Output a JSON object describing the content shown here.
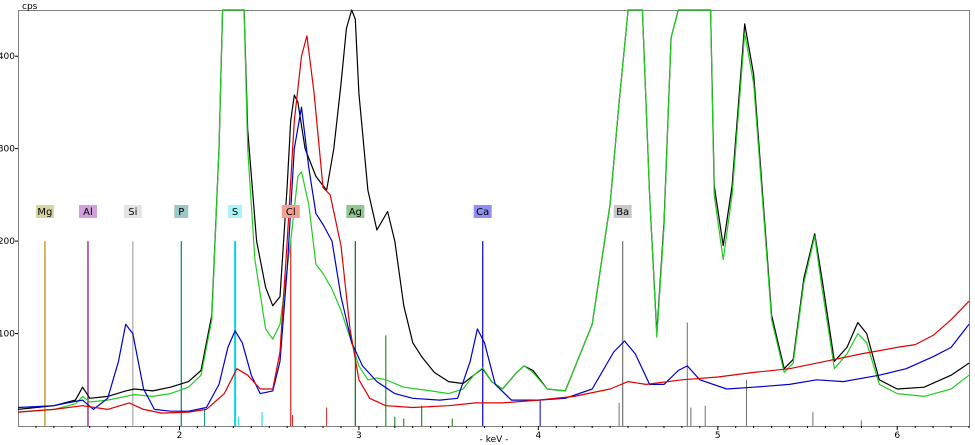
{
  "chart_data": {
    "type": "line",
    "ylabel": "cps",
    "xlabel": "- keV -",
    "xlim": [
      1.1,
      6.4
    ],
    "ylim": [
      0,
      450
    ],
    "x_ticks": [
      2,
      3,
      4,
      5,
      6
    ],
    "y_ticks": [
      100,
      200,
      300,
      400
    ],
    "grid": false,
    "series": [
      {
        "color": "#000000",
        "points": [
          [
            1.1,
            18
          ],
          [
            1.3,
            22
          ],
          [
            1.42,
            28
          ],
          [
            1.46,
            42
          ],
          [
            1.5,
            30
          ],
          [
            1.6,
            32
          ],
          [
            1.7,
            38
          ],
          [
            1.75,
            40
          ],
          [
            1.85,
            38
          ],
          [
            1.95,
            42
          ],
          [
            2.05,
            48
          ],
          [
            2.12,
            60
          ],
          [
            2.18,
            120
          ],
          [
            2.22,
            300
          ],
          [
            2.24,
            450
          ],
          [
            2.36,
            450
          ],
          [
            2.38,
            320
          ],
          [
            2.43,
            200
          ],
          [
            2.48,
            150
          ],
          [
            2.52,
            130
          ],
          [
            2.56,
            140
          ],
          [
            2.6,
            260
          ],
          [
            2.62,
            330
          ],
          [
            2.64,
            358
          ],
          [
            2.66,
            350
          ],
          [
            2.7,
            300
          ],
          [
            2.76,
            270
          ],
          [
            2.82,
            255
          ],
          [
            2.86,
            300
          ],
          [
            2.9,
            370
          ],
          [
            2.93,
            430
          ],
          [
            2.96,
            450
          ],
          [
            2.98,
            440
          ],
          [
            3.0,
            360
          ],
          [
            3.05,
            255
          ],
          [
            3.1,
            212
          ],
          [
            3.16,
            232
          ],
          [
            3.2,
            200
          ],
          [
            3.25,
            130
          ],
          [
            3.3,
            90
          ],
          [
            3.35,
            75
          ],
          [
            3.42,
            58
          ],
          [
            3.5,
            48
          ],
          [
            3.58,
            46
          ],
          [
            3.64,
            55
          ],
          [
            3.69,
            62
          ],
          [
            3.74,
            48
          ],
          [
            3.8,
            40
          ],
          [
            3.88,
            58
          ],
          [
            3.92,
            65
          ],
          [
            3.97,
            60
          ],
          [
            4.05,
            40
          ],
          [
            4.15,
            38
          ],
          [
            4.3,
            110
          ],
          [
            4.4,
            240
          ],
          [
            4.45,
            350
          ],
          [
            4.5,
            450
          ],
          [
            4.58,
            450
          ],
          [
            4.62,
            250
          ],
          [
            4.66,
            100
          ],
          [
            4.7,
            220
          ],
          [
            4.74,
            420
          ],
          [
            4.78,
            450
          ],
          [
            4.96,
            450
          ],
          [
            4.98,
            260
          ],
          [
            5.03,
            195
          ],
          [
            5.08,
            260
          ],
          [
            5.15,
            435
          ],
          [
            5.2,
            380
          ],
          [
            5.3,
            120
          ],
          [
            5.37,
            62
          ],
          [
            5.42,
            72
          ],
          [
            5.48,
            160
          ],
          [
            5.54,
            208
          ],
          [
            5.58,
            160
          ],
          [
            5.65,
            70
          ],
          [
            5.72,
            85
          ],
          [
            5.78,
            112
          ],
          [
            5.83,
            100
          ],
          [
            5.9,
            50
          ],
          [
            6.0,
            40
          ],
          [
            6.15,
            42
          ],
          [
            6.3,
            55
          ],
          [
            6.4,
            68
          ]
        ]
      },
      {
        "color": "#22cc22",
        "points": [
          [
            1.1,
            15
          ],
          [
            1.3,
            18
          ],
          [
            1.42,
            24
          ],
          [
            1.46,
            32
          ],
          [
            1.5,
            26
          ],
          [
            1.6,
            28
          ],
          [
            1.7,
            32
          ],
          [
            1.75,
            34
          ],
          [
            1.85,
            32
          ],
          [
            1.95,
            35
          ],
          [
            2.05,
            42
          ],
          [
            2.12,
            55
          ],
          [
            2.18,
            115
          ],
          [
            2.22,
            300
          ],
          [
            2.24,
            450
          ],
          [
            2.36,
            450
          ],
          [
            2.38,
            300
          ],
          [
            2.42,
            180
          ],
          [
            2.48,
            105
          ],
          [
            2.52,
            94
          ],
          [
            2.56,
            110
          ],
          [
            2.62,
            200
          ],
          [
            2.66,
            270
          ],
          [
            2.68,
            275
          ],
          [
            2.72,
            240
          ],
          [
            2.76,
            175
          ],
          [
            2.8,
            165
          ],
          [
            2.85,
            148
          ],
          [
            2.9,
            125
          ],
          [
            2.96,
            90
          ],
          [
            3.0,
            65
          ],
          [
            3.05,
            50
          ],
          [
            3.1,
            52
          ],
          [
            3.15,
            50
          ],
          [
            3.25,
            42
          ],
          [
            3.4,
            38
          ],
          [
            3.5,
            35
          ],
          [
            3.58,
            40
          ],
          [
            3.64,
            55
          ],
          [
            3.69,
            63
          ],
          [
            3.74,
            48
          ],
          [
            3.8,
            40
          ],
          [
            3.88,
            58
          ],
          [
            3.92,
            65
          ],
          [
            3.97,
            58
          ],
          [
            4.05,
            40
          ],
          [
            4.15,
            38
          ],
          [
            4.3,
            110
          ],
          [
            4.4,
            240
          ],
          [
            4.45,
            350
          ],
          [
            4.5,
            450
          ],
          [
            4.58,
            450
          ],
          [
            4.62,
            250
          ],
          [
            4.66,
            96
          ],
          [
            4.7,
            215
          ],
          [
            4.74,
            420
          ],
          [
            4.78,
            450
          ],
          [
            4.96,
            450
          ],
          [
            4.98,
            250
          ],
          [
            5.03,
            180
          ],
          [
            5.08,
            250
          ],
          [
            5.15,
            425
          ],
          [
            5.2,
            370
          ],
          [
            5.3,
            115
          ],
          [
            5.37,
            58
          ],
          [
            5.42,
            68
          ],
          [
            5.48,
            155
          ],
          [
            5.54,
            205
          ],
          [
            5.58,
            150
          ],
          [
            5.65,
            62
          ],
          [
            5.72,
            78
          ],
          [
            5.78,
            100
          ],
          [
            5.83,
            90
          ],
          [
            5.9,
            45
          ],
          [
            6.0,
            35
          ],
          [
            6.15,
            32
          ],
          [
            6.3,
            40
          ],
          [
            6.4,
            55
          ]
        ]
      },
      {
        "color": "#0000cc",
        "points": [
          [
            1.1,
            20
          ],
          [
            1.3,
            22
          ],
          [
            1.4,
            26
          ],
          [
            1.46,
            28
          ],
          [
            1.52,
            18
          ],
          [
            1.6,
            30
          ],
          [
            1.66,
            70
          ],
          [
            1.7,
            110
          ],
          [
            1.74,
            100
          ],
          [
            1.8,
            40
          ],
          [
            1.86,
            18
          ],
          [
            1.95,
            16
          ],
          [
            2.05,
            16
          ],
          [
            2.15,
            20
          ],
          [
            2.22,
            45
          ],
          [
            2.27,
            85
          ],
          [
            2.31,
            103
          ],
          [
            2.35,
            90
          ],
          [
            2.4,
            55
          ],
          [
            2.45,
            35
          ],
          [
            2.52,
            38
          ],
          [
            2.56,
            70
          ],
          [
            2.6,
            170
          ],
          [
            2.64,
            300
          ],
          [
            2.68,
            345
          ],
          [
            2.72,
            280
          ],
          [
            2.76,
            230
          ],
          [
            2.8,
            218
          ],
          [
            2.85,
            200
          ],
          [
            2.9,
            140
          ],
          [
            2.96,
            90
          ],
          [
            3.02,
            65
          ],
          [
            3.1,
            48
          ],
          [
            3.2,
            35
          ],
          [
            3.3,
            30
          ],
          [
            3.45,
            28
          ],
          [
            3.55,
            30
          ],
          [
            3.62,
            70
          ],
          [
            3.66,
            105
          ],
          [
            3.7,
            90
          ],
          [
            3.76,
            45
          ],
          [
            3.85,
            28
          ],
          [
            4.0,
            28
          ],
          [
            4.15,
            30
          ],
          [
            4.3,
            40
          ],
          [
            4.42,
            80
          ],
          [
            4.48,
            92
          ],
          [
            4.54,
            78
          ],
          [
            4.62,
            45
          ],
          [
            4.7,
            45
          ],
          [
            4.78,
            60
          ],
          [
            4.83,
            65
          ],
          [
            4.9,
            50
          ],
          [
            5.05,
            40
          ],
          [
            5.2,
            42
          ],
          [
            5.4,
            45
          ],
          [
            5.55,
            50
          ],
          [
            5.7,
            48
          ],
          [
            5.9,
            55
          ],
          [
            6.05,
            62
          ],
          [
            6.2,
            75
          ],
          [
            6.3,
            85
          ],
          [
            6.4,
            110
          ]
        ]
      },
      {
        "color": "#dd0000",
        "points": [
          [
            1.1,
            15
          ],
          [
            1.3,
            18
          ],
          [
            1.46,
            22
          ],
          [
            1.6,
            18
          ],
          [
            1.72,
            25
          ],
          [
            1.8,
            18
          ],
          [
            1.9,
            14
          ],
          [
            2.05,
            15
          ],
          [
            2.15,
            18
          ],
          [
            2.25,
            35
          ],
          [
            2.32,
            62
          ],
          [
            2.38,
            55
          ],
          [
            2.45,
            40
          ],
          [
            2.52,
            40
          ],
          [
            2.56,
            80
          ],
          [
            2.6,
            200
          ],
          [
            2.64,
            330
          ],
          [
            2.68,
            400
          ],
          [
            2.71,
            422
          ],
          [
            2.75,
            360
          ],
          [
            2.8,
            258
          ],
          [
            2.84,
            250
          ],
          [
            2.9,
            195
          ],
          [
            2.95,
            105
          ],
          [
            3.0,
            50
          ],
          [
            3.06,
            30
          ],
          [
            3.15,
            22
          ],
          [
            3.3,
            20
          ],
          [
            3.5,
            22
          ],
          [
            3.65,
            25
          ],
          [
            3.8,
            25
          ],
          [
            4.0,
            28
          ],
          [
            4.2,
            32
          ],
          [
            4.4,
            40
          ],
          [
            4.5,
            48
          ],
          [
            4.6,
            45
          ],
          [
            4.8,
            50
          ],
          [
            5.0,
            53
          ],
          [
            5.2,
            58
          ],
          [
            5.4,
            62
          ],
          [
            5.6,
            70
          ],
          [
            5.8,
            78
          ],
          [
            6.0,
            85
          ],
          [
            6.1,
            88
          ],
          [
            6.2,
            98
          ],
          [
            6.3,
            115
          ],
          [
            6.4,
            135
          ]
        ]
      }
    ],
    "element_markers": [
      {
        "label": "Mg",
        "energy": 1.25,
        "color": "#b8860b",
        "box": "#d8d5a0",
        "height": 200
      },
      {
        "label": "Al",
        "energy": 1.49,
        "color": "#8b008b",
        "box": "#d2a0dc",
        "height": 200
      },
      {
        "label": "Si",
        "energy": 1.74,
        "color": "#a8a8a8",
        "box": "#e4e4e4",
        "height": 200
      },
      {
        "label": "P",
        "energy": 2.01,
        "color": "#008080",
        "box": "#9dc7c7",
        "height": 200
      },
      {
        "label": "S",
        "energy": 2.31,
        "color": "#00d8e8",
        "box": "#a8f4f8",
        "height": 200
      },
      {
        "label": "Cl",
        "energy": 2.62,
        "color": "#dd2222",
        "box": "#f0a090",
        "height": 200
      },
      {
        "label": "Ag",
        "energy": 2.98,
        "color": "#007700",
        "box": "#90c890",
        "height": 200
      },
      {
        "label": "Ca",
        "energy": 3.69,
        "color": "#0000cc",
        "box": "#9090f0",
        "height": 200
      },
      {
        "label": "Ba",
        "energy": 4.47,
        "color": "#707070",
        "box": "#c8c8c8",
        "height": 200
      }
    ],
    "minor_lines": [
      {
        "energy": 2.14,
        "height": 18,
        "color": "#008080"
      },
      {
        "energy": 2.33,
        "height": 10,
        "color": "#00d8e8"
      },
      {
        "energy": 2.46,
        "height": 15,
        "color": "#00d8e8"
      },
      {
        "energy": 2.82,
        "height": 20,
        "color": "#dd2222"
      },
      {
        "energy": 2.63,
        "height": 12,
        "color": "#dd2222"
      },
      {
        "energy": 3.15,
        "height": 98,
        "color": "#007700"
      },
      {
        "energy": 3.2,
        "height": 10,
        "color": "#007700"
      },
      {
        "energy": 3.25,
        "height": 8,
        "color": "#007700"
      },
      {
        "energy": 3.35,
        "height": 22,
        "color": "#007700"
      },
      {
        "energy": 3.52,
        "height": 8,
        "color": "#007700"
      },
      {
        "energy": 4.01,
        "height": 28,
        "color": "#0000cc"
      },
      {
        "energy": 4.45,
        "height": 25,
        "color": "#707070"
      },
      {
        "energy": 4.83,
        "height": 112,
        "color": "#707070"
      },
      {
        "energy": 4.85,
        "height": 20,
        "color": "#707070"
      },
      {
        "energy": 4.93,
        "height": 22,
        "color": "#707070"
      },
      {
        "energy": 5.16,
        "height": 50,
        "color": "#707070"
      },
      {
        "energy": 5.53,
        "height": 15,
        "color": "#707070"
      },
      {
        "energy": 5.8,
        "height": 6,
        "color": "#707070"
      }
    ]
  }
}
